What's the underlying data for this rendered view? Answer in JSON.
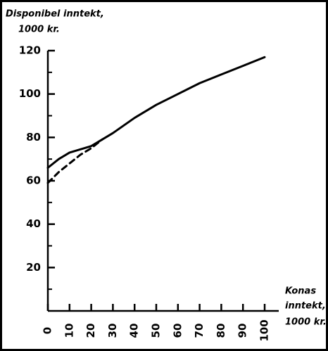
{
  "chart_data": {
    "type": "line",
    "y_label": [
      "Disponibel inntekt,",
      "1000 kr."
    ],
    "x_label": [
      "Konas",
      "inntekt,",
      "1000 kr."
    ],
    "xlim": [
      0,
      100
    ],
    "xticks": [
      0,
      10,
      20,
      30,
      40,
      50,
      60,
      70,
      80,
      90,
      100
    ],
    "ylim": [
      0,
      120
    ],
    "yticks": [
      20,
      40,
      60,
      80,
      100,
      120
    ],
    "y_minor_ticks": [
      10,
      30,
      50,
      70,
      90,
      110
    ],
    "series": [
      {
        "color": "#000000",
        "style": "solid",
        "x": [
          0,
          5,
          10,
          20,
          25,
          30,
          40,
          50,
          60,
          70,
          80,
          90,
          100
        ],
        "values": [
          66,
          70,
          73,
          76,
          79,
          82,
          89,
          95,
          100,
          105,
          109,
          113,
          117
        ]
      },
      {
        "color": "#000000",
        "style": "dashed",
        "x": [
          0,
          5,
          10,
          15,
          20,
          25
        ],
        "values": [
          59,
          64,
          68,
          72,
          75,
          79
        ]
      }
    ]
  }
}
